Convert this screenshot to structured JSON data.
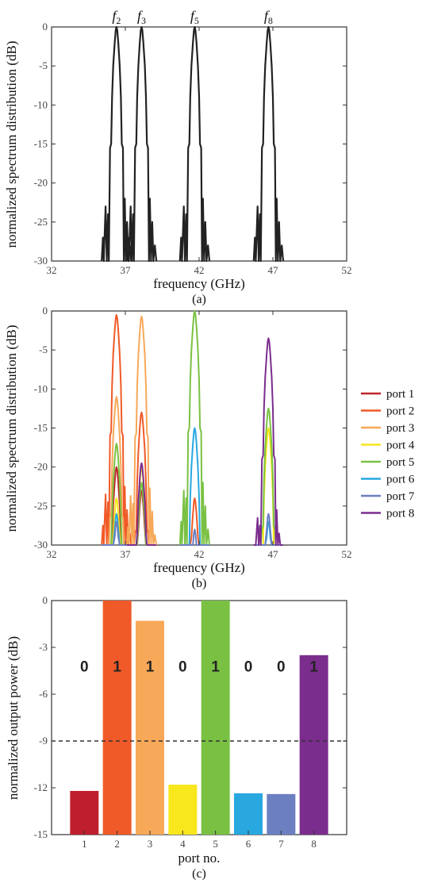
{
  "chart_data": [
    {
      "id": "a",
      "type": "line",
      "caption": "(a)",
      "xlabel": "frequency (GHz)",
      "ylabel": "normalized spectrum distribution (dB)",
      "xlim": [
        32,
        52
      ],
      "ylim": [
        -30,
        0
      ],
      "xticks": [
        32,
        37,
        42,
        47,
        52
      ],
      "yticks": [
        0,
        -5,
        -10,
        -15,
        -20,
        -25,
        -30
      ],
      "grid": false,
      "peak_labels": [
        {
          "base": "f",
          "sub": "2",
          "x": 36.4
        },
        {
          "base": "f",
          "sub": "3",
          "x": 38.1
        },
        {
          "base": "f",
          "sub": "5",
          "x": 41.7
        },
        {
          "base": "f",
          "sub": "8",
          "x": 46.7
        }
      ],
      "series": [
        {
          "color": "#222222",
          "peaks": [
            {
              "center": 36.4,
              "level": 0
            },
            {
              "center": 38.1,
              "level": 0
            },
            {
              "center": 41.7,
              "level": 0
            },
            {
              "center": 46.7,
              "level": 0
            }
          ]
        }
      ]
    },
    {
      "id": "b",
      "type": "line",
      "caption": "(b)",
      "xlabel": "frequency (GHz)",
      "ylabel": "normalized spectrum distribution (dB)",
      "xlim": [
        32,
        52
      ],
      "ylim": [
        -30,
        0
      ],
      "xticks": [
        32,
        37,
        42,
        47,
        52
      ],
      "yticks": [
        0,
        -5,
        -10,
        -15,
        -20,
        -25,
        -30
      ],
      "grid": false,
      "legend_position": "right",
      "series": [
        {
          "name": "port 1",
          "color": "#c0242b",
          "peaks": [
            {
              "center": 36.4,
              "level": -20
            },
            {
              "center": 38.1,
              "level": -23
            }
          ]
        },
        {
          "name": "port 2",
          "color": "#f05a28",
          "peaks": [
            {
              "center": 36.4,
              "level": -0.5
            },
            {
              "center": 38.1,
              "level": -13
            },
            {
              "center": 41.7,
              "level": -24
            }
          ]
        },
        {
          "name": "port 3",
          "color": "#f7a858",
          "peaks": [
            {
              "center": 36.4,
              "level": -11
            },
            {
              "center": 38.1,
              "level": -0.7
            }
          ]
        },
        {
          "name": "port 4",
          "color": "#f8e71c",
          "peaks": [
            {
              "center": 36.4,
              "level": -24
            },
            {
              "center": 38.1,
              "level": -20
            },
            {
              "center": 46.7,
              "level": -15
            }
          ]
        },
        {
          "name": "port 5",
          "color": "#7ac143",
          "peaks": [
            {
              "center": 36.4,
              "level": -17
            },
            {
              "center": 38.1,
              "level": -22
            },
            {
              "center": 41.7,
              "level": 0
            },
            {
              "center": 46.7,
              "level": -12.5
            }
          ]
        },
        {
          "name": "port 6",
          "color": "#29a8e0",
          "peaks": [
            {
              "center": 36.4,
              "level": -26
            },
            {
              "center": 41.7,
              "level": -15
            },
            {
              "center": 46.7,
              "level": -27
            }
          ]
        },
        {
          "name": "port 7",
          "color": "#6b7fc1",
          "peaks": [
            {
              "center": 36.4,
              "level": -27
            },
            {
              "center": 41.7,
              "level": -28
            },
            {
              "center": 46.7,
              "level": -26
            }
          ]
        },
        {
          "name": "port 8",
          "color": "#7b2d8e",
          "peaks": [
            {
              "center": 38.1,
              "level": -19.5
            },
            {
              "center": 46.7,
              "level": -3.5
            }
          ]
        }
      ]
    },
    {
      "id": "c",
      "type": "bar",
      "caption": "(c)",
      "xlabel": "port no.",
      "ylabel": "normalized output power (dB)",
      "ylim": [
        -15,
        0
      ],
      "yticks": [
        0,
        -3,
        -6,
        -9,
        -12,
        -15
      ],
      "grid": false,
      "threshold": -9,
      "categories": [
        "1",
        "2",
        "3",
        "4",
        "5",
        "6",
        "7",
        "8"
      ],
      "values": [
        -12.2,
        0,
        -1.3,
        -11.8,
        0,
        -12.35,
        -12.4,
        -3.5
      ],
      "colors": [
        "#bf1e2e",
        "#f05a28",
        "#f7a858",
        "#f8e71c",
        "#7ac143",
        "#29a8e0",
        "#6b7fc1",
        "#7b2d8e"
      ],
      "bits": [
        "0",
        "1",
        "1",
        "0",
        "1",
        "0",
        "0",
        "1"
      ],
      "bits_level": -4.2
    }
  ]
}
